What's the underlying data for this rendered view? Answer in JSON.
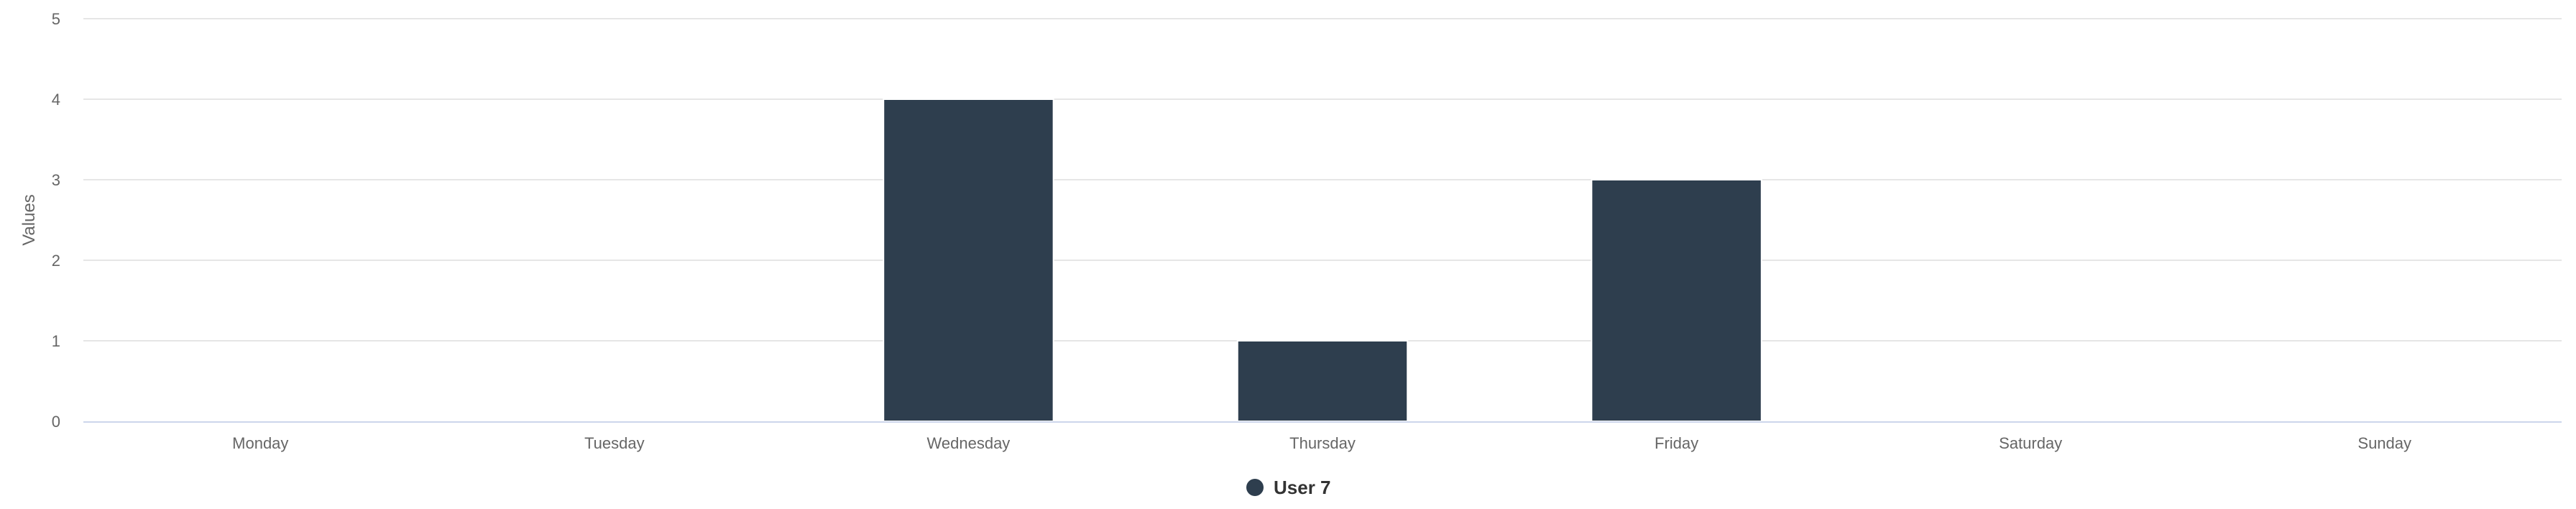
{
  "chart_data": {
    "type": "bar",
    "categories": [
      "Monday",
      "Tuesday",
      "Wednesday",
      "Thursday",
      "Friday",
      "Saturday",
      "Sunday"
    ],
    "series": [
      {
        "name": "User 7",
        "values": [
          0,
          0,
          4,
          1,
          3,
          0,
          0
        ],
        "color": "#2e3e4e"
      }
    ],
    "ylabel": "Values",
    "ylim": [
      0,
      5
    ],
    "yticks": [
      0,
      1,
      2,
      3,
      4,
      5
    ],
    "grid": true,
    "legend": "bottom-center"
  }
}
